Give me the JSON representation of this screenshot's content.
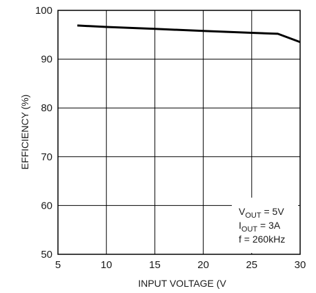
{
  "chart_data": {
    "type": "line",
    "xlabel": "INPUT VOLTAGE (V",
    "ylabel": "EFFICIENCY (%)",
    "xlim": [
      5,
      30
    ],
    "ylim": [
      50,
      100
    ],
    "x_ticks": [
      "5",
      "10",
      "15",
      "20",
      "25",
      "30"
    ],
    "y_ticks": [
      "50",
      "60",
      "70",
      "80",
      "90",
      "100"
    ],
    "grid": true,
    "series": [
      {
        "x": [
          7,
          10,
          15,
          20,
          25,
          27.7,
          30
        ],
        "y": [
          96.9,
          96.6,
          96.2,
          95.8,
          95.4,
          95.2,
          93.5
        ]
      }
    ],
    "annotation": {
      "vout_main": "V",
      "vout_sub": "OUT",
      "vout_rest": " = 5V",
      "iout_main": "I",
      "iout_sub": "OUT",
      "iout_rest": " = 3A",
      "freq": "f = 260kHz"
    },
    "line_color": "#000000",
    "grid_color": "#000000"
  }
}
